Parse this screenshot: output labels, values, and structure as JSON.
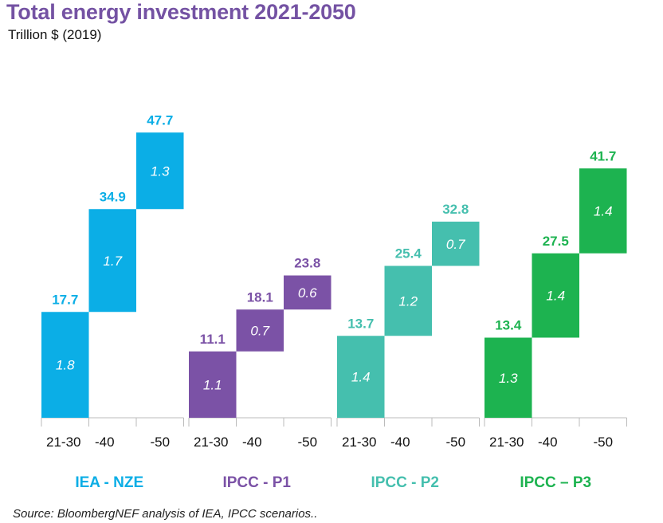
{
  "chart_data": {
    "type": "waterfall",
    "title": "Total energy investment 2021-2050",
    "subtitle": "Trillion  $ (2019)",
    "source": "Source: BloombergNEF analysis of IEA, IPCC scenarios..",
    "ylim": [
      0,
      50
    ],
    "grid": false,
    "groups": [
      {
        "name": "IEA - NZE",
        "color": "#0BAEE6",
        "categories": [
          "21-30",
          "-40",
          "-50"
        ],
        "cumulative": [
          17.7,
          34.9,
          47.7
        ],
        "cumulative_labels": [
          "17.7",
          "34.9",
          "47.7"
        ],
        "inner_labels": [
          "1.8",
          "1.7",
          "1.3"
        ]
      },
      {
        "name": "IPCC - P1",
        "color": "#7B52A6",
        "categories": [
          "21-30",
          "-40",
          "-50"
        ],
        "cumulative": [
          11.1,
          18.1,
          23.8
        ],
        "cumulative_labels": [
          "11.1",
          "18.1",
          "23.8"
        ],
        "inner_labels": [
          "1.1",
          "0.7",
          "0.6"
        ]
      },
      {
        "name": "IPCC - P2",
        "color": "#45BFAE",
        "categories": [
          "21-30",
          "-40",
          "-50"
        ],
        "cumulative": [
          13.7,
          25.4,
          32.8
        ],
        "cumulative_labels": [
          "13.7",
          "25.4",
          "32.8"
        ],
        "inner_labels": [
          "1.4",
          "1.2",
          "0.7"
        ]
      },
      {
        "name": "IPCC – P3",
        "color": "#1DB350",
        "categories": [
          "21-30",
          "-40",
          "-50"
        ],
        "cumulative": [
          13.4,
          27.5,
          41.7
        ],
        "cumulative_labels": [
          "13.4",
          "27.5",
          "41.7"
        ],
        "inner_labels": [
          "1.3",
          "1.4",
          "1.4"
        ]
      }
    ]
  }
}
